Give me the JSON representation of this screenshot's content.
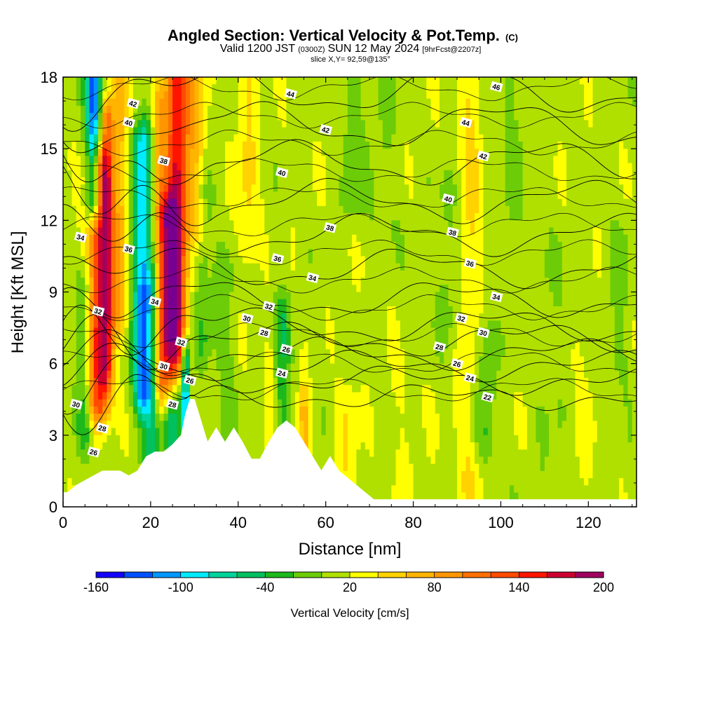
{
  "header": {
    "title": "Angled Section: Vertical Velocity & Pot.Temp.",
    "title_mark": "(C)",
    "subtitle_a": "Valid 1200 JST",
    "subtitle_b": "(0300Z)",
    "subtitle_c": "SUN 12 May 2024",
    "subtitle_d": "[9hrFcst@2207z]",
    "slice": "slice X,Y= 92,59@135°"
  },
  "chart_data": {
    "type": "heatmap",
    "xlabel": "Distance [nm]",
    "ylabel": "Height [Kft MSL]",
    "xlim": [
      0,
      131
    ],
    "ylim": [
      0,
      18
    ],
    "xticks": [
      0,
      20,
      40,
      60,
      80,
      100,
      120
    ],
    "yticks": [
      0,
      3,
      6,
      9,
      12,
      15,
      18
    ],
    "colorbar": {
      "title": "Vertical Velocity [cm/s]",
      "min": -160,
      "max": 200,
      "step": 20,
      "labels": [
        -160,
        -100,
        -40,
        20,
        80,
        140,
        200
      ],
      "colors": [
        "#1400ff",
        "#0050ff",
        "#0096ff",
        "#00ebff",
        "#00d49b",
        "#00c060",
        "#1cb81c",
        "#6ccc08",
        "#b0e000",
        "#ffff00",
        "#ffd200",
        "#ffb400",
        "#ff9600",
        "#ff7000",
        "#ff4a00",
        "#ff1400",
        "#cd0030",
        "#a00060",
        "#780090"
      ]
    },
    "terrain_profile": {
      "x": [
        0,
        1,
        3,
        5,
        7,
        9,
        11,
        13,
        15,
        17,
        19,
        21,
        23,
        25,
        27,
        28,
        29,
        30,
        31,
        32,
        33,
        35,
        37,
        39,
        41,
        43,
        45,
        47,
        49,
        51,
        53,
        55,
        57,
        59,
        61,
        63,
        65,
        67,
        69,
        71,
        131
      ],
      "height": [
        0.6,
        0.6,
        0.9,
        1.1,
        1.3,
        1.5,
        1.5,
        1.5,
        1.3,
        1.5,
        2.1,
        2.3,
        2.3,
        2.6,
        3.0,
        3.9,
        4.5,
        4.5,
        3.9,
        3.3,
        2.7,
        3.3,
        2.7,
        3.3,
        2.7,
        2.0,
        2.0,
        2.7,
        3.3,
        3.6,
        3.3,
        2.7,
        2.1,
        1.5,
        2.1,
        1.5,
        1.2,
        0.9,
        0.6,
        0.3,
        0.3
      ]
    },
    "theta_contours": [
      {
        "level": 22,
        "base": 4.6,
        "label_x": 97,
        "label_h": 4.6
      },
      {
        "level": 24,
        "base": 5.3,
        "label_x": 93,
        "label_h": 5.4
      },
      {
        "level": 26,
        "base": 5.9,
        "label_x": 90,
        "label_h": 6.0
      },
      {
        "level": 28,
        "base": 6.4,
        "label_x": 86,
        "label_h": 6.7
      },
      {
        "level": 30,
        "base": 7.0,
        "label_x": 96,
        "label_h": 7.3
      },
      {
        "level": 32,
        "base": 7.6,
        "label_x": 91,
        "label_h": 7.9
      },
      {
        "level": 34,
        "base": 8.7,
        "label_x": 99,
        "label_h": 8.8
      },
      {
        "level": 36,
        "base": 10.0,
        "label_x": 93,
        "label_h": 10.2
      },
      {
        "level": 38,
        "base": 11.4,
        "label_x": 89,
        "label_h": 11.5
      },
      {
        "level": 40,
        "base": 12.8,
        "label_x": 88,
        "label_h": 12.9
      },
      {
        "level": 42,
        "base": 14.4,
        "label_x": 96,
        "label_h": 14.7
      },
      {
        "level": 44,
        "base": 16.0,
        "label_x": 92,
        "label_h": 16.1
      },
      {
        "level": 46,
        "base": 17.5,
        "label_x": 99,
        "label_h": 17.6
      }
    ],
    "extra_contour_labels": [
      {
        "text": "42",
        "x": 16,
        "h": 16.9
      },
      {
        "text": "40",
        "x": 15,
        "h": 16.1
      },
      {
        "text": "38",
        "x": 23,
        "h": 14.5
      },
      {
        "text": "34",
        "x": 4,
        "h": 11.3
      },
      {
        "text": "36",
        "x": 15,
        "h": 10.8
      },
      {
        "text": "34",
        "x": 21,
        "h": 8.6
      },
      {
        "text": "32",
        "x": 8,
        "h": 8.2
      },
      {
        "text": "32",
        "x": 27,
        "h": 6.9
      },
      {
        "text": "30",
        "x": 23,
        "h": 5.9
      },
      {
        "text": "28",
        "x": 25,
        "h": 4.3
      },
      {
        "text": "26",
        "x": 29,
        "h": 5.3
      },
      {
        "text": "30",
        "x": 3,
        "h": 4.3
      },
      {
        "text": "28",
        "x": 9,
        "h": 3.3
      },
      {
        "text": "26",
        "x": 7,
        "h": 2.3
      },
      {
        "text": "44",
        "x": 52,
        "h": 17.3
      },
      {
        "text": "42",
        "x": 60,
        "h": 15.8
      },
      {
        "text": "40",
        "x": 50,
        "h": 14.0
      },
      {
        "text": "38",
        "x": 61,
        "h": 11.7
      },
      {
        "text": "36",
        "x": 49,
        "h": 10.4
      },
      {
        "text": "34",
        "x": 57,
        "h": 9.6
      },
      {
        "text": "32",
        "x": 47,
        "h": 8.4
      },
      {
        "text": "30",
        "x": 42,
        "h": 7.9
      },
      {
        "text": "28",
        "x": 46,
        "h": 7.3
      },
      {
        "text": "26",
        "x": 51,
        "h": 6.6
      },
      {
        "text": "24",
        "x": 50,
        "h": 5.6
      }
    ],
    "velocity_field_features": [
      {
        "x": 8,
        "h_min": 4.5,
        "h_max": 14,
        "width": 2.6,
        "w": 130
      },
      {
        "x": 10,
        "h_min": 6,
        "h_max": 16,
        "width": 1.6,
        "w": 100
      },
      {
        "x": 13,
        "h_min": 8,
        "h_max": 18,
        "width": 1.8,
        "w": 60
      },
      {
        "x": 7,
        "h_min": 13,
        "h_max": 18,
        "width": 1.8,
        "w": -140
      },
      {
        "x": 5,
        "h_min": 3.5,
        "h_max": 9,
        "width": 1.8,
        "w": -50
      },
      {
        "x": 18,
        "h_min": 5,
        "h_max": 15,
        "width": 2.2,
        "w": -110
      },
      {
        "x": 20,
        "h_min": 2.5,
        "h_max": 9,
        "width": 2.0,
        "w": -60
      },
      {
        "x": 22,
        "h_min": 5,
        "h_max": 17,
        "width": 1.6,
        "w": 60
      },
      {
        "x": 26,
        "h_min": 6.5,
        "h_max": 18,
        "width": 2.4,
        "w": 150
      },
      {
        "x": 24,
        "h_min": 5.5,
        "h_max": 12,
        "width": 2.0,
        "w": 120
      },
      {
        "x": 25,
        "h_min": 3,
        "h_max": 6,
        "width": 2.2,
        "w": -60
      },
      {
        "x": 28,
        "h_min": 3.5,
        "h_max": 6,
        "width": 1.0,
        "w": -130
      },
      {
        "x": 30,
        "h_min": 12,
        "h_max": 18,
        "width": 2.5,
        "w": 50
      },
      {
        "x": 32,
        "h_min": 7,
        "h_max": 13,
        "width": 2.0,
        "w": -30
      },
      {
        "x": 37,
        "h_min": 1.5,
        "h_max": 10,
        "width": 2.4,
        "w": -20
      },
      {
        "x": 42,
        "h_min": 11,
        "h_max": 18,
        "width": 2.5,
        "w": 30
      },
      {
        "x": 50,
        "h_min": 2,
        "h_max": 8,
        "width": 1.8,
        "w": -45
      },
      {
        "x": 47,
        "h_min": 2,
        "h_max": 6,
        "width": 1.4,
        "w": 20
      },
      {
        "x": 55,
        "h_min": 1,
        "h_max": 4,
        "width": 1.4,
        "w": 55
      },
      {
        "x": 65,
        "h_min": 0.5,
        "h_max": 4,
        "width": 2.5,
        "w": 25
      },
      {
        "x": 66,
        "h_min": 13,
        "h_max": 18,
        "width": 2.5,
        "w": -25
      },
      {
        "x": 73,
        "h_min": 12,
        "h_max": 18,
        "width": 3,
        "w": -15
      },
      {
        "x": 78,
        "h_min": 0.5,
        "h_max": 5,
        "width": 4,
        "w": 10
      },
      {
        "x": 88,
        "h_min": 8,
        "h_max": 13,
        "width": 2.5,
        "w": -20
      },
      {
        "x": 93,
        "h_min": 1,
        "h_max": 18,
        "width": 2.8,
        "w": 30
      },
      {
        "x": 96,
        "h_min": 3,
        "h_max": 7,
        "width": 2.8,
        "w": -35
      },
      {
        "x": 102,
        "h_min": 11,
        "h_max": 18,
        "width": 3,
        "w": -15
      },
      {
        "x": 112,
        "h_min": 0.5,
        "h_max": 10,
        "width": 4,
        "w": -10
      },
      {
        "x": 118,
        "h_min": 1,
        "h_max": 6,
        "width": 4,
        "w": 10
      },
      {
        "x": 127,
        "h_min": 6,
        "h_max": 11,
        "width": 3,
        "w": -15
      }
    ]
  }
}
